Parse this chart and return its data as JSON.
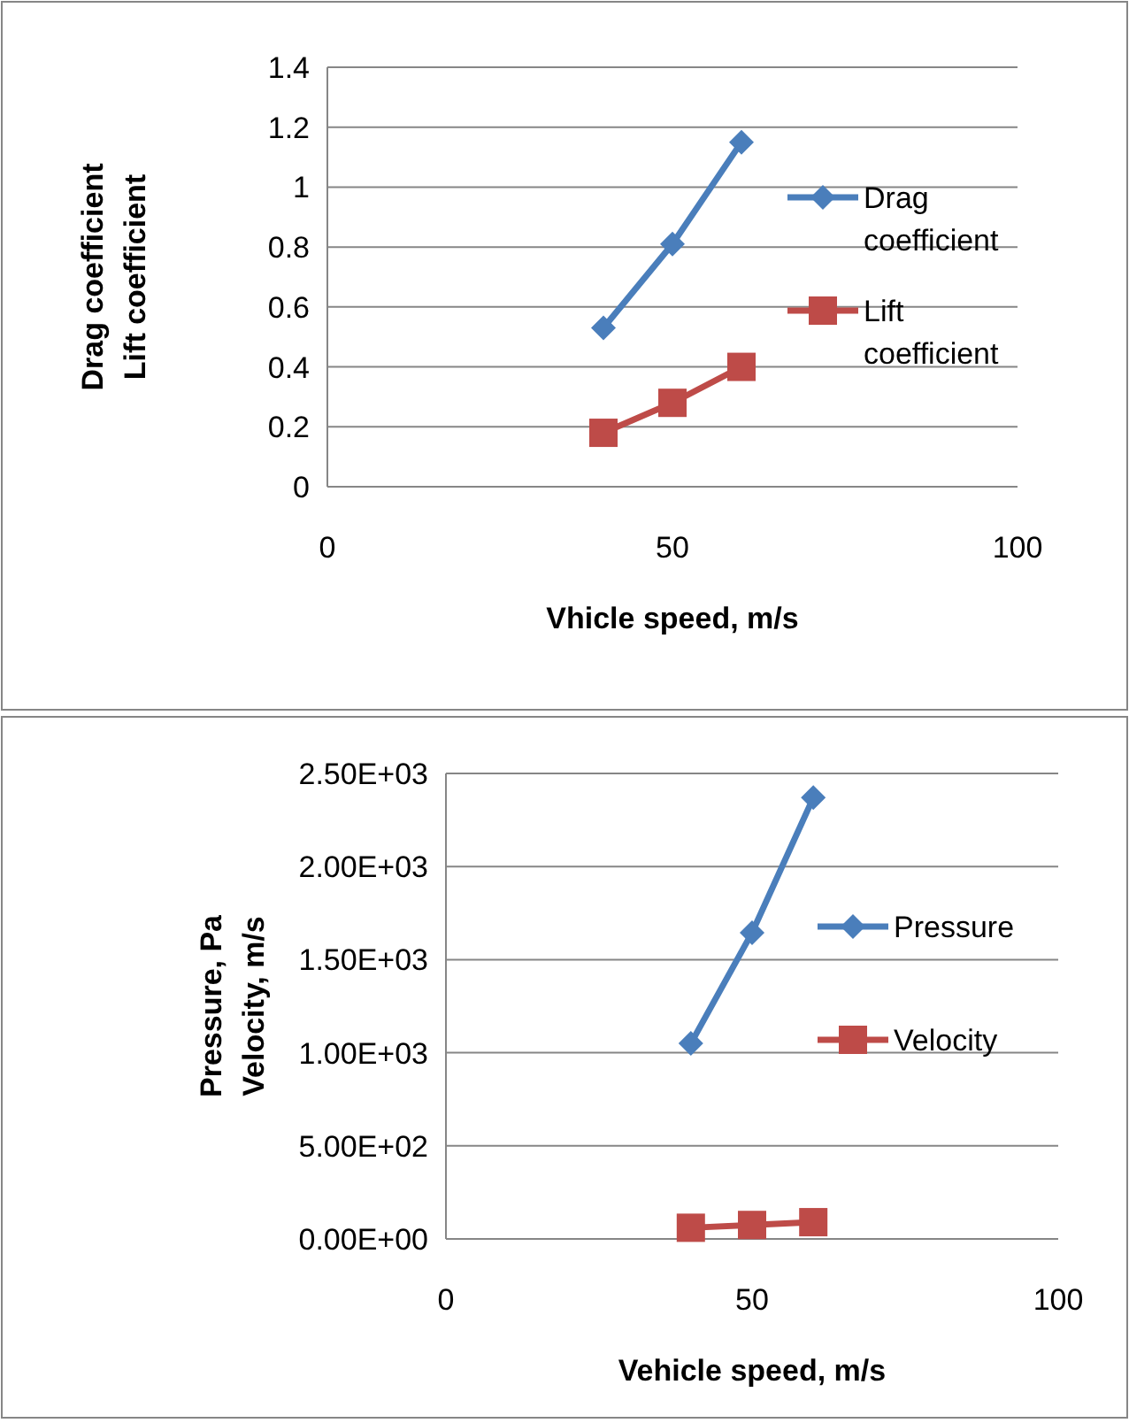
{
  "chart_data": [
    {
      "type": "line",
      "xlabel": "Vhicle speed, m/s",
      "ylabel": "Drag coefficient\nLift coefficient",
      "x": [
        40,
        50,
        60
      ],
      "xlim": [
        0,
        100
      ],
      "xticks": [
        0,
        50,
        100
      ],
      "ylim": [
        0,
        1.4
      ],
      "yticks": [
        0,
        0.2,
        0.4,
        0.6,
        0.8,
        1,
        1.2,
        1.4
      ],
      "grid": "y",
      "legend": "right",
      "line_style": "solid",
      "series": [
        {
          "name": "Drag coefficient",
          "color": "#4a7ebb",
          "marker": "diamond",
          "values": [
            0.53,
            0.81,
            1.15
          ]
        },
        {
          "name": "Lift coefficient",
          "color": "#be4b48",
          "marker": "square",
          "values": [
            0.18,
            0.28,
            0.4
          ]
        }
      ]
    },
    {
      "type": "line",
      "xlabel": "Vehicle speed, m/s",
      "ylabel": "Pressure, Pa\nVelocity, m/s",
      "x": [
        40,
        50,
        60
      ],
      "xlim": [
        0,
        100
      ],
      "xticks": [
        0,
        50,
        100
      ],
      "ylim": [
        0,
        2500
      ],
      "yticks": [
        {
          "value": 0,
          "label": "0.00E+00"
        },
        {
          "value": 500,
          "label": "5.00E+02"
        },
        {
          "value": 1000,
          "label": "1.00E+03"
        },
        {
          "value": 1500,
          "label": "1.50E+03"
        },
        {
          "value": 2000,
          "label": "2.00E+03"
        },
        {
          "value": 2500,
          "label": "2.50E+03"
        }
      ],
      "grid": "y",
      "legend": "right",
      "line_style": "solid",
      "series": [
        {
          "name": "Pressure",
          "color": "#4a7ebb",
          "marker": "diamond",
          "values": [
            1050,
            1645,
            2370
          ]
        },
        {
          "name": "Velocity",
          "color": "#be4b48",
          "marker": "square",
          "values": [
            60,
            75,
            90
          ]
        }
      ]
    }
  ]
}
